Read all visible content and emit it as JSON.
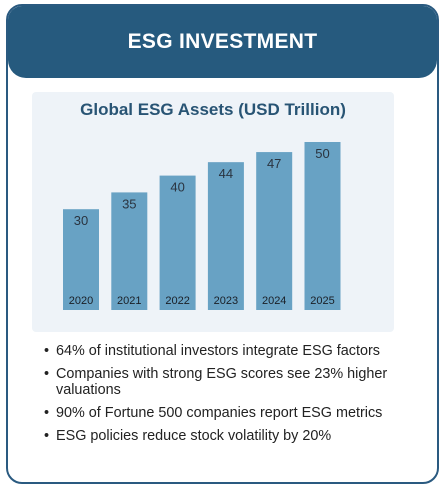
{
  "header": {
    "title": "ESG INVESTMENT"
  },
  "chart_data": {
    "type": "bar",
    "title": "Global ESG Assets (USD Trillion)",
    "categories": [
      "2020",
      "2021",
      "2022",
      "2023",
      "2024",
      "2025"
    ],
    "values": [
      30,
      35,
      40,
      44,
      47,
      50
    ],
    "xlabel": "",
    "ylabel": "",
    "ylim": [
      0,
      50
    ],
    "grid": false,
    "colors": {
      "bar": "#68a2c4",
      "panel": "#eef3f8"
    }
  },
  "facts": [
    {
      "bullet": "•",
      "text": "64% of institutional investors integrate ESG factors"
    },
    {
      "bullet": "•",
      "text": "Companies with strong ESG scores see 23% higher valuations"
    },
    {
      "bullet": "•",
      "text": "90% of Fortune 500 companies report ESG metrics"
    },
    {
      "bullet": "•",
      "text": "ESG policies reduce stock volatility by 20%"
    }
  ],
  "colors": {
    "accent": "#265a7e",
    "border": "#2a5a80"
  }
}
